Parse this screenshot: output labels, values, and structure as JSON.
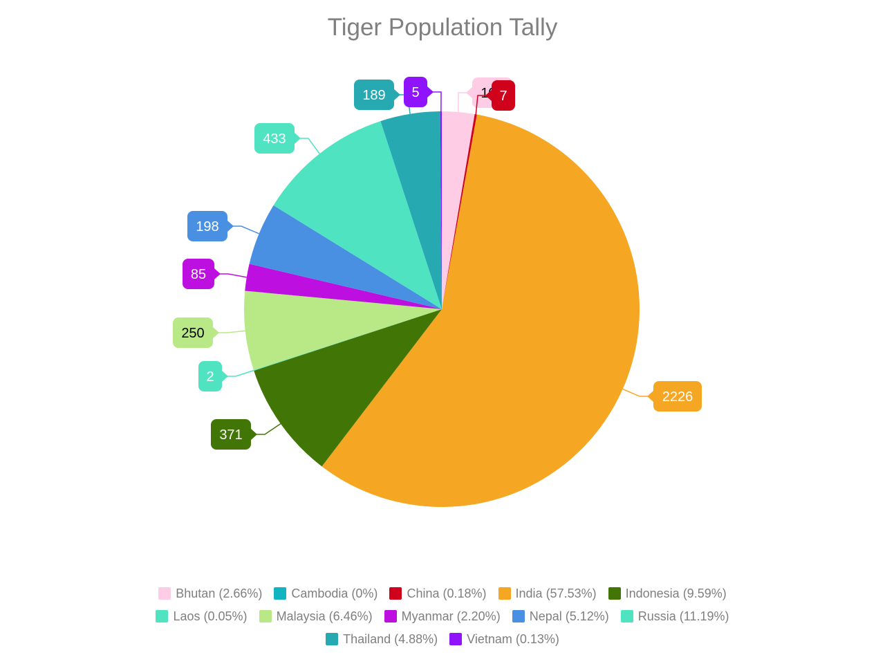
{
  "chart_data": {
    "type": "pie",
    "title": "Tiger Population Tally",
    "categories": [
      "Bhutan",
      "Cambodia",
      "China",
      "India",
      "Indonesia",
      "Laos",
      "Malaysia",
      "Myanmar",
      "Nepal",
      "Russia",
      "Thailand",
      "Vietnam"
    ],
    "values": [
      103,
      0,
      7,
      2226,
      371,
      2,
      250,
      85,
      198,
      433,
      189,
      5
    ],
    "percentages": [
      "2.66%",
      "0%",
      "0.18%",
      "57.53%",
      "9.59%",
      "0.05%",
      "6.46%",
      "2.20%",
      "5.12%",
      "11.19%",
      "4.88%",
      "0.13%"
    ],
    "colors": [
      "#ffcce6",
      "#12b5bf",
      "#d0021b",
      "#f5a623",
      "#417505",
      "#50e3c2",
      "#b8e986",
      "#bd10e0",
      "#4a90e2",
      "#50e3c2",
      "#26a9b0",
      "#9013fe"
    ],
    "label_text_colors": [
      "#000",
      "#fff",
      "#fff",
      "#fff",
      "#fff",
      "#fff",
      "#000",
      "#fff",
      "#fff",
      "#fff",
      "#fff",
      "#fff"
    ],
    "legend_position": "bottom",
    "start_angle": "12 o'clock, clockwise"
  },
  "legend": [
    {
      "label": "Bhutan (2.66%)"
    },
    {
      "label": "Cambodia (0%)"
    },
    {
      "label": "China (0.18%)"
    },
    {
      "label": "India (57.53%)"
    },
    {
      "label": "Indonesia (9.59%)"
    },
    {
      "label": "Laos (0.05%)"
    },
    {
      "label": "Malaysia (6.46%)"
    },
    {
      "label": "Myanmar (2.20%)"
    },
    {
      "label": "Nepal (5.12%)"
    },
    {
      "label": "Russia (11.19%)"
    },
    {
      "label": "Thailand (4.88%)"
    },
    {
      "label": "Vietnam (0.13%)"
    }
  ]
}
